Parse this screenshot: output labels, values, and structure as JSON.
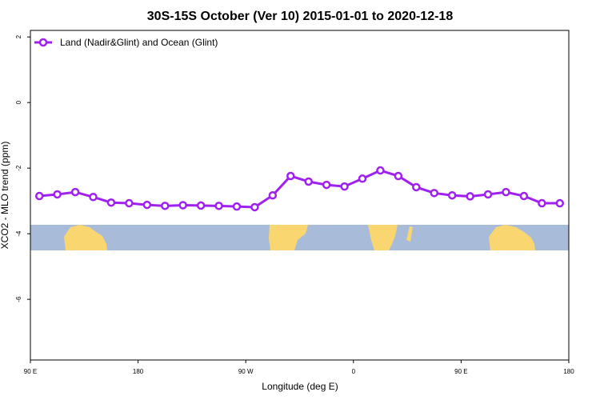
{
  "chart_data": {
    "type": "line",
    "title": "30S-15S October (Ver 10)   2015-01-01 to 2020-12-18",
    "x_label": "Longitude (deg E)",
    "y_label": "XCO2 - MLO trend (ppm)",
    "x": [
      97.5,
      112.5,
      127.5,
      142.5,
      157.5,
      172.5,
      187.5,
      202.5,
      217.5,
      232.5,
      247.5,
      262.5,
      277.5,
      292.5,
      307.5,
      322.5,
      337.5,
      352.5,
      367.5,
      382.5,
      397.5,
      412.5,
      427.5,
      442.5,
      457.5,
      472.5,
      487.5,
      502.5,
      517.5,
      532.5
    ],
    "series": [
      {
        "name": "Land (Nadir&Glint) and Ocean (Glint)",
        "color": "#a020f0",
        "values": [
          -2.85,
          -2.8,
          -2.73,
          -2.88,
          -3.05,
          -3.07,
          -3.12,
          -3.15,
          -3.13,
          -3.14,
          -3.15,
          -3.17,
          -3.19,
          -2.83,
          -2.24,
          -2.41,
          -2.51,
          -2.56,
          -2.32,
          -2.07,
          -2.24,
          -2.58,
          -2.76,
          -2.83,
          -2.86,
          -2.8,
          -2.73,
          -2.85,
          -3.07,
          -3.07
        ]
      }
    ],
    "xlim": [
      90,
      540
    ],
    "xticks": [
      {
        "value": 90,
        "label": "90 E"
      },
      180,
      {
        "value": 270,
        "label": "90 W"
      },
      {
        "value": 360,
        "label": "0"
      },
      {
        "value": 450,
        "label": "90 E"
      },
      {
        "value": 540,
        "label": "180"
      }
    ],
    "ylim": [
      -7.85,
      2.2
    ],
    "yticks": [
      2,
      0,
      -2,
      -4,
      -6
    ],
    "legend": "top-left"
  }
}
